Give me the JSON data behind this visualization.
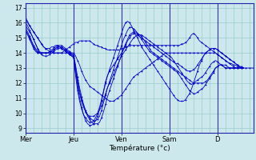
{
  "title": "",
  "xlabel": "Température (°c)",
  "background_color": "#cce8ec",
  "line_color": "#0000cc",
  "grid_color": "#99cccc",
  "yticks": [
    9,
    10,
    11,
    12,
    13,
    14,
    15,
    16,
    17
  ],
  "ylim": [
    8.7,
    17.3
  ],
  "xlim": [
    0,
    114
  ],
  "day_labels": [
    "Mer",
    "Jeu",
    "Ven",
    "Sam",
    "D"
  ],
  "day_positions": [
    0,
    24,
    48,
    72,
    96
  ],
  "series": [
    [
      16.3,
      16.1,
      15.8,
      15.6,
      15.4,
      15.2,
      15.0,
      14.8,
      14.6,
      14.4,
      14.3,
      14.2,
      14.1,
      14.1,
      14.0,
      14.0,
      14.0,
      14.0,
      14.0,
      14.1,
      14.2,
      14.3,
      14.4,
      14.5,
      14.6,
      14.7,
      14.7,
      14.8,
      14.8,
      14.8,
      14.8,
      14.8,
      14.8,
      14.7,
      14.6,
      14.5,
      14.5,
      14.4,
      14.4,
      14.3,
      14.3,
      14.2,
      14.2,
      14.2,
      14.2,
      14.2,
      14.2,
      14.2,
      14.3,
      14.3,
      14.4,
      14.4,
      14.5,
      14.5,
      14.5,
      14.5,
      14.5,
      14.5,
      14.5,
      14.5,
      14.5,
      14.5,
      14.5,
      14.5,
      14.5,
      14.5,
      14.5,
      14.5,
      14.5,
      14.5,
      14.5,
      14.5,
      14.5,
      14.5,
      14.5,
      14.5,
      14.5,
      14.5,
      14.6,
      14.6,
      14.7,
      14.8,
      15.0,
      15.2,
      15.3,
      15.2,
      15.0,
      14.8,
      14.7,
      14.6,
      14.5,
      14.4,
      14.3,
      14.2,
      14.1,
      14.0,
      13.9,
      13.8,
      13.7,
      13.6,
      13.5,
      13.4,
      13.3,
      13.3,
      13.2,
      13.2,
      13.1,
      13.1,
      13.1,
      13.0,
      13.0,
      13.0,
      13.0,
      13.0,
      13.0
    ],
    [
      16.2,
      16.0,
      15.8,
      15.6,
      15.4,
      15.2,
      15.0,
      14.8,
      14.6,
      14.4,
      14.3,
      14.3,
      14.3,
      14.4,
      14.4,
      14.5,
      14.5,
      14.4,
      14.3,
      14.2,
      14.1,
      14.0,
      13.9,
      13.8,
      13.7,
      12.5,
      11.5,
      10.8,
      10.3,
      9.9,
      9.7,
      9.5,
      9.4,
      9.4,
      9.5,
      9.7,
      10.0,
      10.4,
      10.9,
      11.5,
      12.1,
      12.5,
      12.8,
      13.0,
      13.2,
      13.4,
      13.6,
      13.8,
      14.0,
      14.2,
      14.5,
      14.8,
      15.0,
      15.2,
      15.3,
      15.3,
      15.2,
      15.1,
      15.0,
      14.9,
      14.8,
      14.7,
      14.6,
      14.5,
      14.4,
      14.3,
      14.2,
      14.1,
      14.0,
      13.9,
      13.8,
      13.7,
      13.6,
      13.5,
      13.4,
      13.3,
      13.3,
      13.2,
      13.1,
      13.0,
      12.9,
      12.8,
      12.8,
      12.8,
      12.9,
      13.0,
      13.2,
      13.4,
      13.6,
      13.8,
      14.0,
      14.1,
      14.2,
      14.3,
      14.3,
      14.3,
      14.2,
      14.1,
      14.0,
      13.9,
      13.8,
      13.7,
      13.6,
      13.5,
      13.4,
      13.3,
      13.2,
      13.1,
      13.0,
      13.0
    ],
    [
      16.0,
      15.8,
      15.5,
      15.2,
      14.9,
      14.6,
      14.3,
      14.1,
      14.0,
      14.0,
      14.0,
      14.0,
      14.0,
      14.0,
      14.0,
      14.0,
      14.0,
      14.0,
      14.0,
      14.0,
      14.0,
      14.0,
      14.0,
      14.0,
      14.0,
      13.8,
      13.5,
      13.2,
      12.8,
      12.5,
      12.2,
      12.0,
      11.8,
      11.7,
      11.6,
      11.5,
      11.4,
      11.3,
      11.2,
      11.1,
      11.0,
      10.9,
      10.8,
      10.8,
      10.8,
      10.9,
      11.0,
      11.1,
      11.2,
      11.4,
      11.6,
      11.8,
      12.0,
      12.2,
      12.4,
      12.5,
      12.6,
      12.7,
      12.8,
      12.9,
      13.0,
      13.1,
      13.2,
      13.3,
      13.4,
      13.5,
      13.6,
      13.7,
      13.8,
      13.9,
      14.0,
      14.0,
      14.0,
      14.0,
      14.0,
      14.0,
      14.0,
      14.0,
      14.0,
      14.0,
      14.0,
      14.0,
      14.0,
      14.0,
      14.0,
      14.0,
      14.0,
      14.0,
      14.0,
      14.0,
      14.0,
      14.0,
      14.0,
      14.0,
      14.0,
      14.0,
      13.9,
      13.8,
      13.7,
      13.6,
      13.5,
      13.4,
      13.3,
      13.2,
      13.1,
      13.0,
      13.0,
      13.0,
      13.0,
      13.0
    ],
    [
      15.8,
      15.6,
      15.4,
      15.2,
      14.9,
      14.6,
      14.3,
      14.0,
      13.9,
      13.8,
      13.8,
      13.8,
      13.9,
      14.0,
      14.1,
      14.2,
      14.3,
      14.3,
      14.3,
      14.2,
      14.1,
      14.0,
      13.9,
      13.8,
      13.7,
      12.8,
      12.0,
      11.3,
      10.8,
      10.4,
      10.1,
      9.9,
      9.8,
      9.8,
      9.8,
      9.9,
      10.0,
      10.2,
      10.5,
      10.9,
      11.3,
      11.7,
      12.0,
      12.3,
      12.6,
      12.9,
      13.2,
      13.5,
      13.8,
      14.0,
      14.2,
      14.4,
      14.6,
      14.8,
      15.0,
      15.1,
      15.2,
      15.2,
      15.2,
      15.1,
      15.0,
      14.9,
      14.8,
      14.7,
      14.6,
      14.5,
      14.4,
      14.3,
      14.2,
      14.1,
      14.0,
      13.9,
      13.8,
      13.7,
      13.5,
      13.3,
      13.1,
      12.9,
      12.7,
      12.5,
      12.3,
      12.1,
      12.0,
      11.9,
      12.0,
      12.1,
      12.2,
      12.3,
      12.4,
      12.5,
      12.7,
      12.9,
      13.1,
      13.3,
      13.4,
      13.5,
      13.4,
      13.3,
      13.2,
      13.1,
      13.0,
      13.0,
      13.0,
      13.0,
      13.0,
      13.0,
      13.0,
      13.0,
      13.0,
      13.0
    ],
    [
      15.6,
      15.4,
      15.1,
      14.8,
      14.5,
      14.3,
      14.1,
      14.0,
      14.0,
      14.0,
      14.0,
      14.0,
      14.0,
      14.1,
      14.2,
      14.3,
      14.4,
      14.4,
      14.4,
      14.3,
      14.2,
      14.1,
      14.0,
      13.9,
      13.8,
      13.0,
      12.2,
      11.5,
      10.9,
      10.5,
      10.1,
      9.8,
      9.6,
      9.4,
      9.3,
      9.3,
      9.3,
      9.4,
      9.7,
      10.1,
      10.6,
      11.1,
      11.5,
      11.9,
      12.3,
      12.7,
      13.1,
      13.5,
      13.9,
      14.3,
      14.6,
      14.9,
      15.2,
      15.3,
      15.4,
      15.4,
      15.3,
      15.2,
      15.1,
      14.9,
      14.7,
      14.5,
      14.3,
      14.1,
      14.0,
      13.9,
      13.8,
      13.7,
      13.6,
      13.5,
      13.4,
      13.3,
      13.2,
      13.1,
      13.0,
      12.9,
      12.8,
      12.7,
      12.6,
      12.5,
      12.4,
      12.3,
      12.2,
      12.1,
      12.0,
      12.0,
      12.0,
      12.0,
      12.0,
      12.0,
      12.1,
      12.2,
      12.4,
      12.6,
      12.8,
      13.0,
      13.1,
      13.2,
      13.2,
      13.2,
      13.2,
      13.1,
      13.0,
      13.0,
      13.0,
      13.0,
      13.0,
      13.0,
      13.0,
      13.0
    ],
    [
      15.5,
      15.3,
      15.0,
      14.7,
      14.4,
      14.2,
      14.0,
      14.0,
      14.0,
      14.0,
      14.0,
      14.0,
      14.1,
      14.2,
      14.3,
      14.4,
      14.5,
      14.5,
      14.5,
      14.4,
      14.3,
      14.2,
      14.1,
      14.0,
      13.9,
      13.2,
      12.4,
      11.7,
      11.1,
      10.6,
      10.2,
      9.9,
      9.7,
      9.6,
      9.5,
      9.5,
      9.6,
      9.8,
      10.2,
      10.7,
      11.2,
      11.7,
      12.1,
      12.5,
      12.9,
      13.3,
      13.7,
      14.1,
      14.5,
      14.9,
      15.2,
      15.5,
      15.7,
      15.7,
      15.6,
      15.5,
      15.3,
      15.1,
      14.9,
      14.7,
      14.5,
      14.3,
      14.1,
      14.0,
      13.9,
      13.8,
      13.7,
      13.6,
      13.5,
      13.4,
      13.3,
      13.2,
      13.1,
      13.0,
      12.9,
      12.8,
      12.7,
      12.5,
      12.3,
      12.1,
      11.9,
      11.7,
      11.5,
      11.4,
      11.3,
      11.3,
      11.4,
      11.5,
      11.6,
      11.7,
      11.9,
      12.1,
      12.3,
      12.5,
      12.7,
      13.0,
      13.1,
      13.2,
      13.2,
      13.1,
      13.0,
      13.0,
      13.0,
      13.0,
      13.0,
      13.0,
      13.0,
      13.0,
      13.0,
      13.0
    ],
    [
      15.4,
      15.2,
      14.9,
      14.6,
      14.3,
      14.1,
      14.0,
      14.0,
      14.0,
      14.0,
      14.0,
      14.0,
      14.0,
      14.1,
      14.2,
      14.3,
      14.4,
      14.4,
      14.4,
      14.3,
      14.2,
      14.1,
      14.0,
      13.9,
      13.8,
      12.8,
      11.8,
      11.0,
      10.4,
      9.9,
      9.5,
      9.3,
      9.2,
      9.2,
      9.3,
      9.5,
      9.8,
      10.3,
      10.8,
      11.4,
      12.0,
      12.5,
      12.9,
      13.3,
      13.7,
      14.1,
      14.5,
      14.9,
      15.3,
      15.7,
      16.0,
      16.1,
      16.0,
      15.8,
      15.5,
      15.2,
      15.0,
      14.7,
      14.4,
      14.2,
      14.0,
      13.8,
      13.6,
      13.4,
      13.2,
      13.0,
      12.8,
      12.6,
      12.4,
      12.2,
      12.0,
      11.8,
      11.6,
      11.4,
      11.2,
      11.0,
      10.9,
      10.8,
      10.8,
      10.8,
      10.9,
      11.1,
      11.3,
      11.6,
      12.0,
      12.4,
      12.8,
      13.2,
      13.5,
      13.8,
      14.0,
      14.1,
      14.2,
      14.3,
      14.3,
      14.3,
      14.2,
      14.1,
      14.0,
      13.9,
      13.8,
      13.7,
      13.6,
      13.5,
      13.4,
      13.3,
      13.2,
      13.1,
      13.0,
      13.0
    ]
  ]
}
